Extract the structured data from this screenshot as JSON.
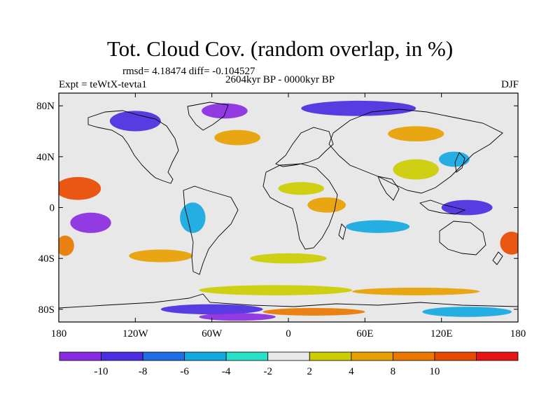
{
  "title": "Tot. Cloud Cov. (random overlap, in %)",
  "stats_line": "rmsd= 4.18474 diff= -0.104527",
  "period_line": "2604kyr BP - 0000kyr BP",
  "experiment_label": "Expt = teWtX-tevta1",
  "season_label": "DJF",
  "map": {
    "lon_range": [
      -180,
      180
    ],
    "lat_range": [
      -90,
      90
    ],
    "lat_ticks": [
      {
        "lat": 80,
        "label": "80N"
      },
      {
        "lat": 40,
        "label": "40N"
      },
      {
        "lat": 0,
        "label": "0"
      },
      {
        "lat": -40,
        "label": "40S"
      },
      {
        "lat": -80,
        "label": "80S"
      }
    ],
    "lon_ticks": [
      {
        "lon": -180,
        "label": "180"
      },
      {
        "lon": -120,
        "label": "120W"
      },
      {
        "lon": -60,
        "label": "60W"
      },
      {
        "lon": 0,
        "label": "0"
      },
      {
        "lon": 60,
        "label": "60E"
      },
      {
        "lon": 120,
        "label": "120E"
      },
      {
        "lon": 180,
        "label": "180"
      }
    ],
    "anomalies": [
      {
        "lon": -165,
        "lat": 15,
        "rx": 18,
        "ry": 9,
        "level": 9,
        "name": "anomaly-central-pacific-red"
      },
      {
        "lon": -155,
        "lat": -12,
        "rx": 16,
        "ry": 8,
        "level": 0,
        "name": "anomaly-south-pacific-purple"
      },
      {
        "lon": 140,
        "lat": 0,
        "rx": 20,
        "ry": 6,
        "level": 1,
        "name": "anomaly-west-pacific-blue"
      },
      {
        "lon": 175,
        "lat": -28,
        "rx": 9,
        "ry": 9,
        "level": 9,
        "name": "anomaly-dateline-red"
      },
      {
        "lon": -175,
        "lat": -30,
        "rx": 7,
        "ry": 8,
        "level": 8,
        "name": "anomaly-west-edge-orange"
      },
      {
        "lon": -120,
        "lat": 68,
        "rx": 20,
        "ry": 8,
        "level": 1,
        "name": "anomaly-north-america-blue"
      },
      {
        "lon": -50,
        "lat": 76,
        "rx": 18,
        "ry": 6,
        "level": 0,
        "name": "anomaly-greenland-purple"
      },
      {
        "lon": 55,
        "lat": 78,
        "rx": 45,
        "ry": 6,
        "level": 1,
        "name": "anomaly-arctic-russia-blue"
      },
      {
        "lon": 100,
        "lat": 58,
        "rx": 22,
        "ry": 6,
        "level": 7,
        "name": "anomaly-siberia-orange"
      },
      {
        "lon": -40,
        "lat": 55,
        "rx": 18,
        "ry": 6,
        "level": 7,
        "name": "anomaly-north-atlantic-orange"
      },
      {
        "lon": 10,
        "lat": 15,
        "rx": 18,
        "ry": 5,
        "level": 6,
        "name": "anomaly-sahel-yellow"
      },
      {
        "lon": 30,
        "lat": 2,
        "rx": 15,
        "ry": 6,
        "level": 7,
        "name": "anomaly-central-africa-orange"
      },
      {
        "lon": 70,
        "lat": -15,
        "rx": 25,
        "ry": 5,
        "level": 3,
        "name": "anomaly-indian-ocean-cyan"
      },
      {
        "lon": -100,
        "lat": -38,
        "rx": 25,
        "ry": 5,
        "level": 7,
        "name": "anomaly-south-east-pacific-orange"
      },
      {
        "lon": 0,
        "lat": -40,
        "rx": 30,
        "ry": 4,
        "level": 6,
        "name": "anomaly-south-atlantic-yellow"
      },
      {
        "lon": 100,
        "lat": 30,
        "rx": 18,
        "ry": 8,
        "level": 6,
        "name": "anomaly-tibet-yellow"
      },
      {
        "lon": 130,
        "lat": 38,
        "rx": 12,
        "ry": 6,
        "level": 3,
        "name": "anomaly-japan-cyan"
      },
      {
        "lon": -75,
        "lat": -8,
        "rx": 10,
        "ry": 12,
        "level": 3,
        "name": "anomaly-amazon-cyan"
      },
      {
        "lon": -10,
        "lat": -65,
        "rx": 60,
        "ry": 4,
        "level": 6,
        "name": "anomaly-southern-ocean-yellow"
      },
      {
        "lon": 100,
        "lat": -66,
        "rx": 50,
        "ry": 3,
        "level": 7,
        "name": "anomaly-southern-ocean-orange"
      },
      {
        "lon": -60,
        "lat": -80,
        "rx": 40,
        "ry": 4,
        "level": 1,
        "name": "anomaly-antarctica-blue"
      },
      {
        "lon": -40,
        "lat": -86,
        "rx": 30,
        "ry": 3,
        "level": 0,
        "name": "anomaly-antarctica-purple"
      },
      {
        "lon": 20,
        "lat": -82,
        "rx": 40,
        "ry": 3,
        "level": 8,
        "name": "anomaly-antarctica-red"
      },
      {
        "lon": 140,
        "lat": -82,
        "rx": 35,
        "ry": 4,
        "level": 3,
        "name": "anomaly-east-antarctica-cyan"
      }
    ]
  },
  "colorbar": {
    "colors": [
      "#8a2be2",
      "#4a2ee0",
      "#1e6ee6",
      "#14a8e0",
      "#28e0c8",
      "#e8e8e8",
      "#cccc00",
      "#e8a000",
      "#e87800",
      "#e84a00",
      "#e81414"
    ],
    "labels": [
      "-10",
      "-8",
      "-6",
      "-4",
      "-2",
      "2",
      "4",
      "8",
      "10"
    ]
  }
}
